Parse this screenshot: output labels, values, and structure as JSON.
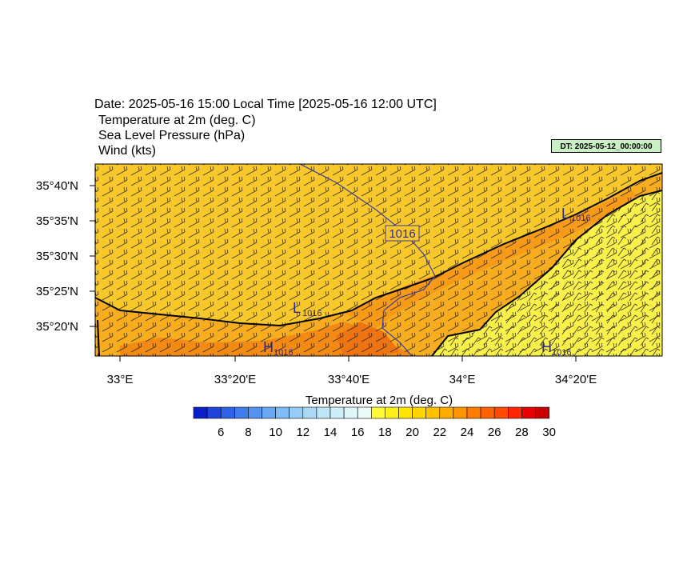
{
  "header": {
    "title": "Date: 2025-05-16  15:00 Local Time [2025-05-16  12:00 UTC]",
    "line1": "Temperature at 2m   (deg. C)",
    "line2": "Sea Level Pressure   (hPa)",
    "line3": "Wind   (kts)",
    "dt_badge": "DT: 2025-05-12_00:00:00"
  },
  "map": {
    "lat_labels": [
      "35°40'N",
      "35°35'N",
      "35°30'N",
      "35°25'N",
      "35°20'N"
    ],
    "lon_labels": [
      "33°E",
      "33°20'E",
      "33°40'E",
      "34°E",
      "34°20'E"
    ],
    "contour_label": "1016",
    "pressure_centers": [
      {
        "type": "L",
        "value": "1016"
      },
      {
        "type": "L",
        "value": "1016"
      },
      {
        "type": "H",
        "value": "1016"
      },
      {
        "type": "H",
        "value": "1016"
      }
    ]
  },
  "colorbar": {
    "title": "Temperature at 2m  (deg. C)",
    "tick_labels": [
      "6",
      "8",
      "10",
      "12",
      "14",
      "16",
      "18",
      "20",
      "22",
      "24",
      "26",
      "28",
      "30"
    ],
    "colors": [
      "#0a1fc8",
      "#1e44dc",
      "#2f62e6",
      "#3f7cec",
      "#5593f0",
      "#6aa8f2",
      "#80bcf4",
      "#96ccf6",
      "#aad9f7",
      "#bde6f8",
      "#cdf0f8",
      "#ddf6f8",
      "#ecfbf8",
      "#fffb3a",
      "#fff01c",
      "#ffe600",
      "#ffd400",
      "#ffc200",
      "#ffac00",
      "#ff9400",
      "#ff7c00",
      "#ff6200",
      "#ff4800",
      "#ff2600",
      "#e80000",
      "#c80000"
    ]
  },
  "colors": {
    "land_orange": "#f7a91c",
    "sea_yellow": "#f8d12a",
    "hot_spot": "#f27d14",
    "isobar": "#3c3c9c"
  }
}
